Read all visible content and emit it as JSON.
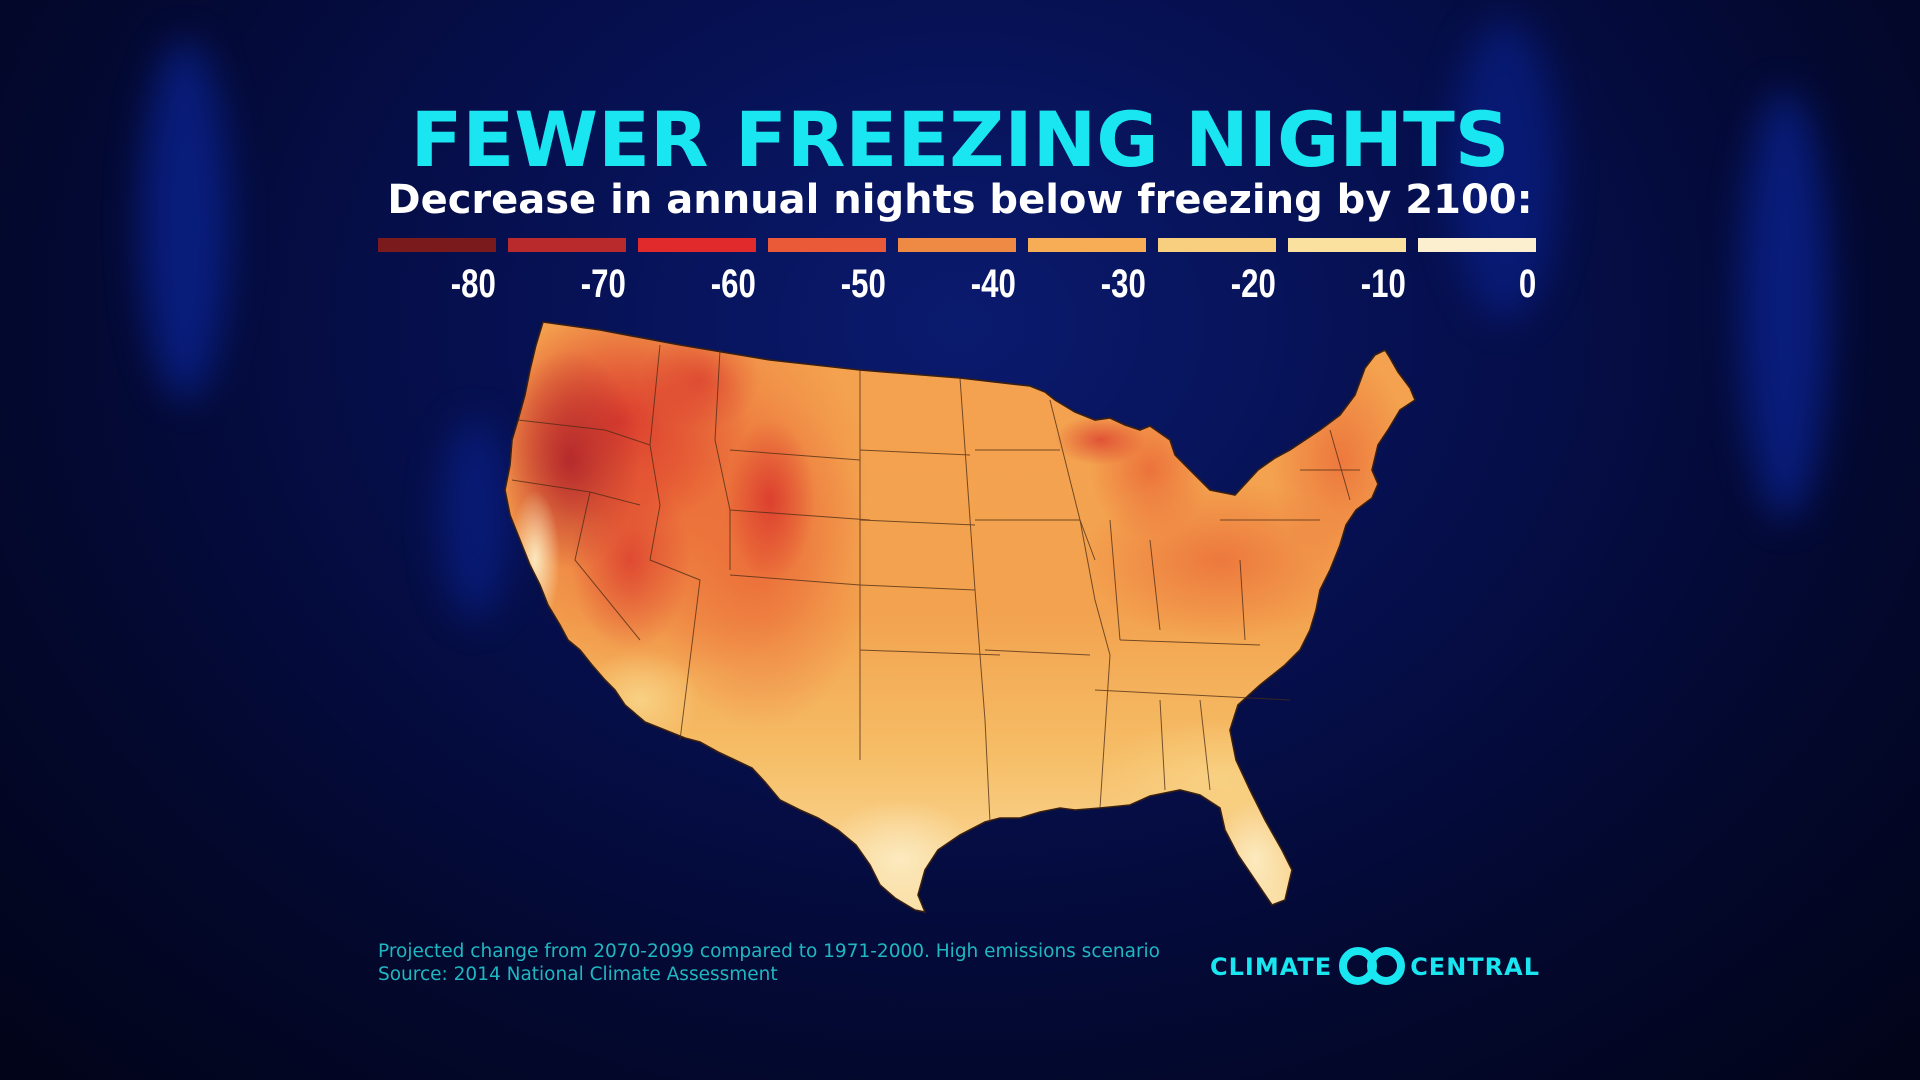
{
  "title": "FEWER FREEZING NIGHTS",
  "subtitle": "Decrease in annual nights below freezing by 2100:",
  "legend": [
    {
      "label": "-80",
      "color": "#7a1a1c"
    },
    {
      "label": "-70",
      "color": "#b82a2c"
    },
    {
      "label": "-60",
      "color": "#e02a2c"
    },
    {
      "label": "-50",
      "color": "#ea5a38"
    },
    {
      "label": "-40",
      "color": "#ef8a45"
    },
    {
      "label": "-30",
      "color": "#f6ad55"
    },
    {
      "label": "-20",
      "color": "#f8cf7e"
    },
    {
      "label": "-10",
      "color": "#fae1a0"
    },
    {
      "label": "0",
      "color": "#fcefd0"
    }
  ],
  "footer": {
    "note": "Projected change from 2070-2099 compared to 1971-2000. High emissions scenario",
    "source": "Source: 2014 National Climate Assessment"
  },
  "logo": {
    "left_text": "CLIMATE",
    "right_text": "CENTRAL",
    "color": "#19e6f0"
  }
}
